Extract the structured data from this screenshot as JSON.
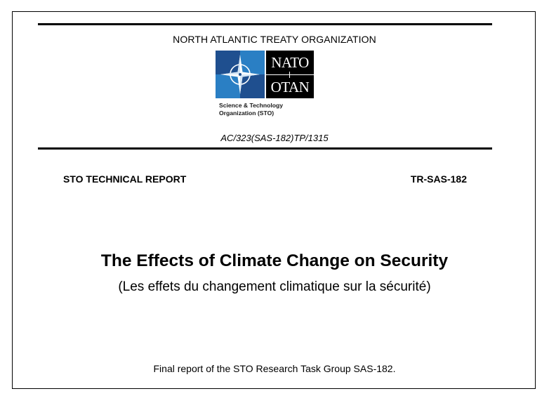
{
  "header": {
    "organization": "NORTH ATLANTIC TREATY ORGANIZATION",
    "document_code": "AC/323(SAS-182)TP/1315"
  },
  "logo": {
    "wordmark_top": "NATO",
    "wordmark_bottom": "OTAN",
    "subtitle_line1": "Science & Technology",
    "subtitle_line2": "Organization (STO)",
    "icon": "nato-compass-rose-icon",
    "colors": {
      "emblem_dark_blue": "#1f4f8f",
      "emblem_light_blue": "#2a7fc4",
      "wordmark_bg": "#000000"
    }
  },
  "report": {
    "type": "STO TECHNICAL REPORT",
    "number": "TR-SAS-182",
    "title": "The Effects of Climate Change on Security",
    "subtitle": "(Les effets du changement climatique sur la sécurité)",
    "note": "Final report of the STO Research Task Group SAS-182."
  }
}
